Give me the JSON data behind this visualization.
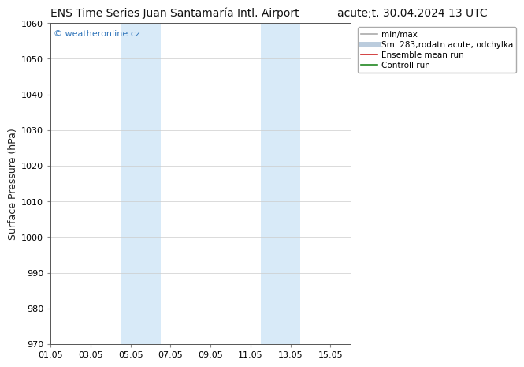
{
  "title_left": "ENS Time Series Juan Santamaría Intl. Airport",
  "title_right": "acute;t. 30.04.2024 13 UTC",
  "ylabel": "Surface Pressure (hPa)",
  "ylim": [
    970,
    1060
  ],
  "yticks": [
    970,
    980,
    990,
    1000,
    1010,
    1020,
    1030,
    1040,
    1050,
    1060
  ],
  "xtick_labels": [
    "01.05",
    "03.05",
    "05.05",
    "07.05",
    "09.05",
    "11.05",
    "13.05",
    "15.05"
  ],
  "xtick_positions": [
    0,
    2,
    4,
    6,
    8,
    10,
    12,
    14
  ],
  "xlim": [
    0,
    15
  ],
  "shaded_bands": [
    {
      "x_start": 3.5,
      "x_end": 5.5
    },
    {
      "x_start": 10.5,
      "x_end": 12.5
    }
  ],
  "shade_color": "#d8eaf8",
  "background_color": "#ffffff",
  "watermark_text": "© weatheronline.cz",
  "watermark_color": "#3377bb",
  "legend_entries": [
    {
      "label": "min/max",
      "color": "#aaaaaa",
      "lw": 1.2
    },
    {
      "label": "Sm  283;rodatn acute; odchylka",
      "color": "#bbccdd",
      "lw": 5
    },
    {
      "label": "Ensemble mean run",
      "color": "#cc2222",
      "lw": 1.2
    },
    {
      "label": "Controll run",
      "color": "#228822",
      "lw": 1.2
    }
  ],
  "title_fontsize": 10,
  "ylabel_fontsize": 9,
  "tick_fontsize": 8,
  "legend_fontsize": 7.5,
  "watermark_fontsize": 8
}
